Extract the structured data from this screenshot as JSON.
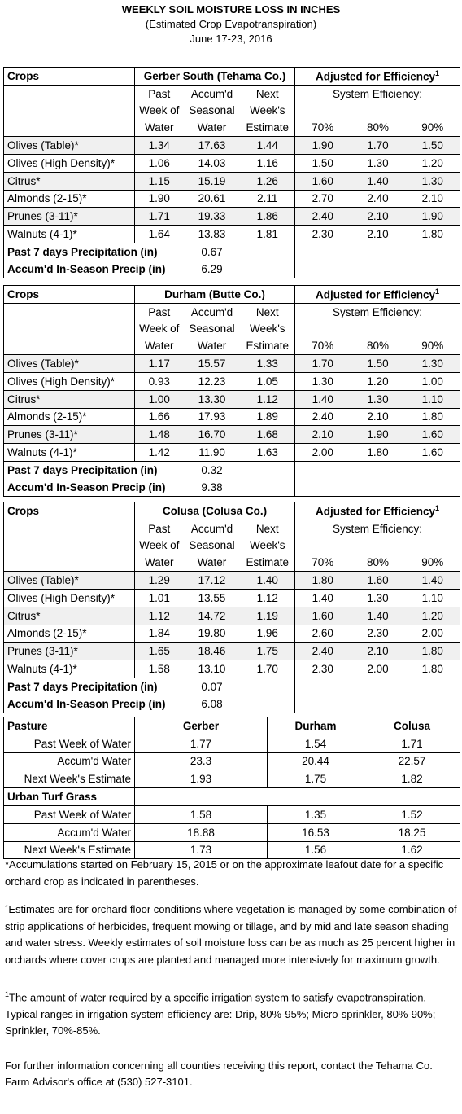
{
  "header": {
    "title": "WEEKLY SOIL MOISTURE LOSS IN INCHES",
    "subtitle": "(Estimated Crop Evapotranspiration)",
    "date": "June 17-23, 2016"
  },
  "tables": [
    {
      "crops_label": "Crops",
      "region": "Gerber South (Tehama Co.)",
      "adjusted": "Adjusted for Efficiency",
      "adjusted_note": "1",
      "col_heads": [
        [
          "Past",
          "Week of",
          "Water"
        ],
        [
          "Accum'd",
          "Seasonal",
          "Water"
        ],
        [
          "Next",
          "Week's",
          "Estimate"
        ]
      ],
      "system_efficiency": "System Efficiency:",
      "efficiencies": [
        "70%",
        "80%",
        "90%"
      ],
      "rows": [
        [
          "Olives (Table)*",
          "1.34",
          "17.63",
          "1.44",
          "1.90",
          "1.70",
          "1.50"
        ],
        [
          "Olives (High Density)*",
          "1.06",
          "14.03",
          "1.16",
          "1.50",
          "1.30",
          "1.20"
        ],
        [
          "Citrus*",
          "1.15",
          "15.19",
          "1.26",
          "1.60",
          "1.40",
          "1.30"
        ],
        [
          "Almonds (2-15)*",
          "1.90",
          "20.61",
          "2.11",
          "2.70",
          "2.40",
          "2.10"
        ],
        [
          "Prunes (3-11)*",
          "1.71",
          "19.33",
          "1.86",
          "2.40",
          "2.10",
          "1.90"
        ],
        [
          "Walnuts (4-1)*",
          "1.64",
          "13.83",
          "1.81",
          "2.30",
          "2.10",
          "1.80"
        ]
      ],
      "precip": [
        [
          "Past 7 days Precipitation (in)",
          "0.67"
        ],
        [
          "Accum'd In-Season Precip (in)",
          "6.29"
        ]
      ]
    },
    {
      "crops_label": "Crops",
      "region": "Durham (Butte Co.)",
      "adjusted": "Adjusted for Efficiency",
      "adjusted_note": "1",
      "col_heads": [
        [
          "Past",
          "Week of",
          "Water"
        ],
        [
          "Accum'd",
          "Seasonal",
          "Water"
        ],
        [
          "Next",
          "Week's",
          "Estimate"
        ]
      ],
      "system_efficiency": "System Efficiency:",
      "efficiencies": [
        "70%",
        "80%",
        "90%"
      ],
      "rows": [
        [
          "Olives (Table)*",
          "1.17",
          "15.57",
          "1.33",
          "1.70",
          "1.50",
          "1.30"
        ],
        [
          "Olives (High Density)*",
          "0.93",
          "12.23",
          "1.05",
          "1.30",
          "1.20",
          "1.00"
        ],
        [
          "Citrus*",
          "1.00",
          "13.30",
          "1.12",
          "1.40",
          "1.30",
          "1.10"
        ],
        [
          "Almonds (2-15)*",
          "1.66",
          "17.93",
          "1.89",
          "2.40",
          "2.10",
          "1.80"
        ],
        [
          "Prunes (3-11)*",
          "1.48",
          "16.70",
          "1.68",
          "2.10",
          "1.90",
          "1.60"
        ],
        [
          "Walnuts (4-1)*",
          "1.42",
          "11.90",
          "1.63",
          "2.00",
          "1.80",
          "1.60"
        ]
      ],
      "precip": [
        [
          "Past 7 days Precipitation (in)",
          "0.32"
        ],
        [
          "Accum'd In-Season Precip (in)",
          "9.38"
        ]
      ]
    },
    {
      "crops_label": "Crops",
      "region": "Colusa (Colusa Co.)",
      "adjusted": "Adjusted for Efficiency",
      "adjusted_note": "1",
      "col_heads": [
        [
          "Past",
          "Week of",
          "Water"
        ],
        [
          "Accum'd",
          "Seasonal",
          "Water"
        ],
        [
          "Next",
          "Week's",
          "Estimate"
        ]
      ],
      "system_efficiency": "System Efficiency:",
      "efficiencies": [
        "70%",
        "80%",
        "90%"
      ],
      "rows": [
        [
          "Olives (Table)*",
          "1.29",
          "17.12",
          "1.40",
          "1.80",
          "1.60",
          "1.40"
        ],
        [
          "Olives (High Density)*",
          "1.01",
          "13.55",
          "1.12",
          "1.40",
          "1.30",
          "1.10"
        ],
        [
          "Citrus*",
          "1.12",
          "14.72",
          "1.19",
          "1.60",
          "1.40",
          "1.20"
        ],
        [
          "Almonds (2-15)*",
          "1.84",
          "19.80",
          "1.96",
          "2.60",
          "2.30",
          "2.00"
        ],
        [
          "Prunes (3-11)*",
          "1.65",
          "18.46",
          "1.75",
          "2.40",
          "2.10",
          "1.80"
        ],
        [
          "Walnuts (4-1)*",
          "1.58",
          "13.10",
          "1.70",
          "2.30",
          "2.00",
          "1.80"
        ]
      ],
      "precip": [
        [
          "Past 7 days Precipitation (in)",
          "0.07"
        ],
        [
          "Accum'd In-Season Precip (in)",
          "6.08"
        ]
      ]
    }
  ],
  "pasture": {
    "header": [
      "Pasture",
      "Gerber",
      "Durham",
      "Colusa"
    ],
    "rows": [
      [
        "Past Week of Water",
        "1.77",
        "1.54",
        "1.71"
      ],
      [
        "Accum'd Water",
        "23.3",
        "20.44",
        "22.57"
      ],
      [
        "Next Week's Estimate",
        "1.93",
        "1.75",
        "1.82"
      ]
    ],
    "turf_label": "Urban Turf Grass",
    "turf_rows": [
      [
        "Past Week of Water",
        "1.58",
        "1.35",
        "1.52"
      ],
      [
        "Accum'd Water",
        "18.88",
        "16.53",
        "18.25"
      ],
      [
        "Next Week's Estimate",
        "1.73",
        "1.56",
        "1.62"
      ]
    ]
  },
  "notes": {
    "accumulations": "*Accumulations started on February 15, 2015 or on the approximate leafout date for a specific orchard crop as indicated in parentheses.",
    "estimates": "´Estimates are for orchard floor conditions where vegetation is managed by some combination of strip applications of herbicides, frequent mowing or tillage, and by mid and late season shading and water stress.  Weekly estimates of soil moisture loss can be as much as 25 percent higher in orchards where cover crops are planted and managed more intensively for maximum growth.",
    "efficiency_mark": "1",
    "efficiency": "The amount of water required by a specific irrigation system to satisfy evapotranspiration. Typical ranges in irrigation system efficiency are: Drip, 80%-95%; Micro-sprinkler, 80%-90%; Sprinkler, 70%-85%.",
    "contact": "For further information concerning all counties receiving this report, contact the Tehama Co. Farm Advisor's office at (530) 527-3101."
  }
}
